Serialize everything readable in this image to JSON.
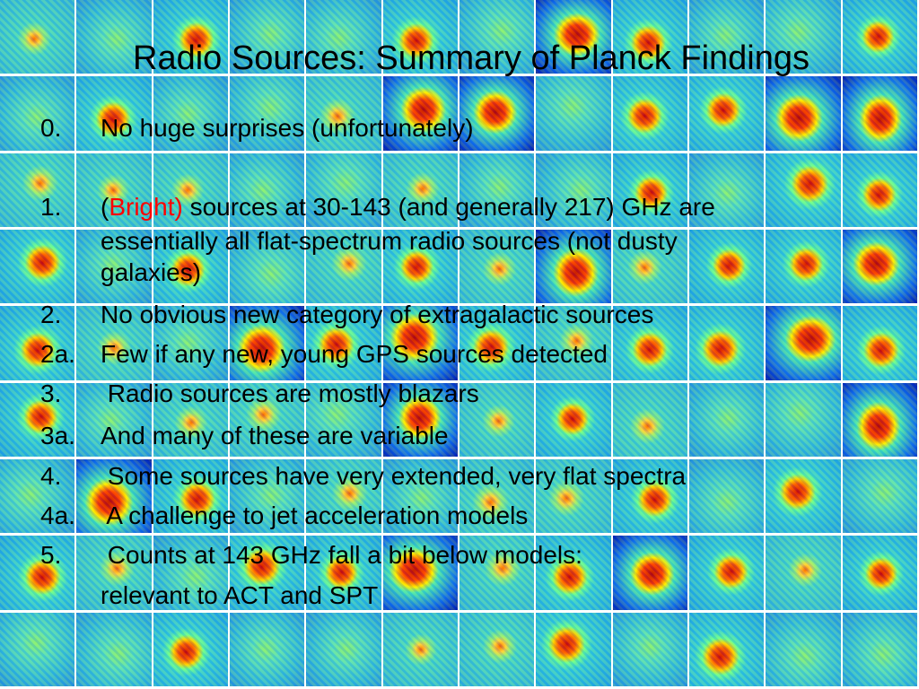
{
  "title": "Radio Sources: Summary of Planck Findings",
  "items": [
    {
      "number": "0.",
      "lines": [
        "No huge surprises (unfortunately)"
      ]
    },
    {
      "number": "1.",
      "lines": [
        {
          "runs": [
            {
              "text": "("
            },
            {
              "text": "Bright)",
              "color": "red"
            },
            {
              "text": " sources at 30-143 (and generally 217) GHz are"
            }
          ]
        },
        "essentially all flat-spectrum radio sources (not dusty",
        "galaxies)"
      ]
    },
    {
      "number": "2.",
      "lines": [
        "No obvious new category of extragalactic sources"
      ]
    },
    {
      "number": "2a.",
      "lines": [
        "Few if any new, young GPS sources detected"
      ]
    },
    {
      "number": "3.",
      "lines": [
        " Radio sources are mostly blazars"
      ]
    },
    {
      "number": "3a.",
      "lines": [
        "And many of these are variable"
      ]
    },
    {
      "number": "4.",
      "lines": [
        " Some sources have very extended, very flat spectra"
      ]
    },
    {
      "number": "4a.",
      "lines": [
        " A challenge to jet acceleration models"
      ]
    },
    {
      "number": "5.",
      "lines": [
        " Counts at 143 GHz fall a bit below models:",
        "relevant to ACT and SPT"
      ]
    }
  ]
}
